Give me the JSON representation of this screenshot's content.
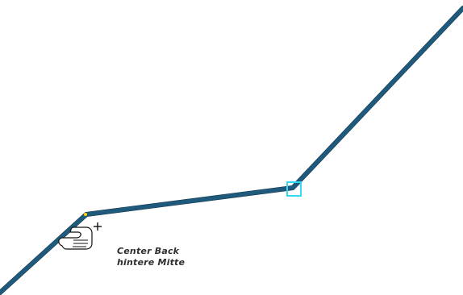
{
  "canvas": {
    "background_color": "#ffffff",
    "pattern_line_color": "#1f5a7c",
    "pattern_line_shadow_color": "#0d2f47",
    "selected_point_color": "#36d7f0",
    "point_marker_color": "#ffd500",
    "cursor_icon": "hand-add-point-icon"
  },
  "label": {
    "line1": "Center Back",
    "line2": "hintere Mitte"
  }
}
